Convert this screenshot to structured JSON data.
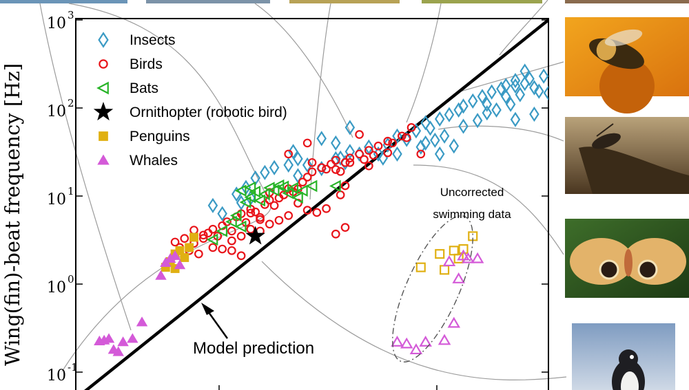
{
  "chart_data": {
    "type": "scatter",
    "xscale": "log",
    "yscale": "log",
    "ylabel": "Wing(fin)-beat frequency [Hz]",
    "ylim": [
      0.05,
      1000
    ],
    "y_ticks": [
      {
        "mant": "10",
        "exp": "-1",
        "value": 0.1
      },
      {
        "mant": "10",
        "exp": "0",
        "value": 1
      },
      {
        "mant": "10",
        "exp": "1",
        "value": 10
      },
      {
        "mant": "10",
        "exp": "2",
        "value": 100
      },
      {
        "mant": "10",
        "exp": "3",
        "value": 1000
      }
    ],
    "legend_position": "top-left",
    "model_line": {
      "label": "Model prediction",
      "y_at_left": 0.05,
      "y_at_right": 1000
    },
    "annotation": {
      "line1": "Uncorrected",
      "line2": "swimming data"
    },
    "series": [
      {
        "name": "Insects",
        "marker": "diamond-open",
        "color": "#3a9ac4",
        "points": [
          [
            0.29,
            7.8
          ],
          [
            0.31,
            6.3
          ],
          [
            0.34,
            10.5
          ],
          [
            0.35,
            8.4
          ],
          [
            0.37,
            9.5
          ],
          [
            0.36,
            12.5
          ],
          [
            0.38,
            16
          ],
          [
            0.4,
            18.5
          ],
          [
            0.42,
            21
          ],
          [
            0.45,
            22.5
          ],
          [
            0.47,
            26.5
          ],
          [
            0.49,
            22.5
          ],
          [
            0.52,
            20.5
          ],
          [
            0.55,
            26.5
          ],
          [
            0.58,
            32
          ],
          [
            0.52,
            45
          ],
          [
            0.47,
            17
          ],
          [
            0.46,
            32
          ],
          [
            0.55,
            40
          ],
          [
            0.56,
            27
          ],
          [
            0.57,
            24
          ],
          [
            0.6,
            30
          ],
          [
            0.62,
            36
          ],
          [
            0.64,
            30
          ],
          [
            0.65,
            27
          ],
          [
            0.66,
            38
          ],
          [
            0.68,
            48
          ],
          [
            0.7,
            44
          ],
          [
            0.72,
            55
          ],
          [
            0.74,
            68
          ],
          [
            0.75,
            59
          ],
          [
            0.77,
            75
          ],
          [
            0.79,
            84
          ],
          [
            0.81,
            95
          ],
          [
            0.82,
            105
          ],
          [
            0.84,
            120
          ],
          [
            0.86,
            135
          ],
          [
            0.87,
            110
          ],
          [
            0.88,
            152
          ],
          [
            0.9,
            165
          ],
          [
            0.91,
            135
          ],
          [
            0.93,
            178
          ],
          [
            0.95,
            190
          ],
          [
            0.96,
            215
          ],
          [
            0.97,
            170
          ],
          [
            0.99,
            230
          ],
          [
            1.01,
            195
          ],
          [
            1.02,
            240
          ],
          [
            1.04,
            214
          ],
          [
            0.95,
            262
          ],
          [
            0.93,
            205
          ],
          [
            0.89,
            95
          ],
          [
            0.85,
            72
          ],
          [
            0.82,
            62
          ],
          [
            0.78,
            48
          ],
          [
            0.76,
            43
          ],
          [
            0.73,
            36
          ],
          [
            0.87,
            88
          ],
          [
            0.92,
            110
          ],
          [
            0.94,
            142
          ],
          [
            0.98,
            155
          ],
          [
            1.0,
            148
          ],
          [
            1.05,
            195
          ],
          [
            0.91,
            180
          ],
          [
            0.97,
            85
          ],
          [
            0.93,
            74
          ],
          [
            0.8,
            37
          ],
          [
            0.77,
            30
          ],
          [
            0.74,
            40
          ],
          [
            0.68,
            30
          ],
          [
            0.58,
            60
          ],
          [
            1.16,
            243
          ],
          [
            1.19,
            460
          ]
        ]
      },
      {
        "name": "Birds",
        "marker": "circle-open",
        "color": "#e8141a",
        "points": [
          [
            0.21,
            3.0
          ],
          [
            0.22,
            2.6
          ],
          [
            0.24,
            2.4
          ],
          [
            0.23,
            3.3
          ],
          [
            0.25,
            2.9
          ],
          [
            0.26,
            2.2
          ],
          [
            0.27,
            3.6
          ],
          [
            0.28,
            3.8
          ],
          [
            0.29,
            4.2
          ],
          [
            0.3,
            3.5
          ],
          [
            0.31,
            4.6
          ],
          [
            0.32,
            5.1
          ],
          [
            0.33,
            4.0
          ],
          [
            0.34,
            5.8
          ],
          [
            0.35,
            6.3
          ],
          [
            0.36,
            5.0
          ],
          [
            0.37,
            7.1
          ],
          [
            0.38,
            6.6
          ],
          [
            0.39,
            5.4
          ],
          [
            0.4,
            8.0
          ],
          [
            0.41,
            9.0
          ],
          [
            0.42,
            7.8
          ],
          [
            0.44,
            10.3
          ],
          [
            0.45,
            12.1
          ],
          [
            0.46,
            11.2
          ],
          [
            0.48,
            14.4
          ],
          [
            0.49,
            16.4
          ],
          [
            0.5,
            18.8
          ],
          [
            0.52,
            21
          ],
          [
            0.53,
            20.2
          ],
          [
            0.54,
            23
          ],
          [
            0.55,
            25.5
          ],
          [
            0.56,
            19
          ],
          [
            0.57,
            24
          ],
          [
            0.58,
            27
          ],
          [
            0.6,
            30
          ],
          [
            0.61,
            26
          ],
          [
            0.62,
            33
          ],
          [
            0.63,
            29
          ],
          [
            0.64,
            37
          ],
          [
            0.66,
            42
          ],
          [
            0.67,
            40
          ],
          [
            0.69,
            48
          ],
          [
            0.7,
            46
          ],
          [
            0.71,
            60
          ],
          [
            0.73,
            30
          ],
          [
            0.25,
            4.1
          ],
          [
            0.27,
            3.3
          ],
          [
            0.29,
            2.6
          ],
          [
            0.31,
            2.5
          ],
          [
            0.33,
            3.1
          ],
          [
            0.35,
            3.5
          ],
          [
            0.37,
            4.2
          ],
          [
            0.39,
            4.0
          ],
          [
            0.41,
            4.8
          ],
          [
            0.43,
            5.3
          ],
          [
            0.45,
            6.0
          ],
          [
            0.47,
            8.3
          ],
          [
            0.49,
            6.9
          ],
          [
            0.51,
            6.5
          ],
          [
            0.53,
            7.2
          ],
          [
            0.33,
            2.4
          ],
          [
            0.35,
            2.1
          ],
          [
            0.39,
            5.7
          ],
          [
            0.43,
            9.5
          ],
          [
            0.47,
            12.0
          ],
          [
            0.5,
            24
          ],
          [
            0.55,
            20
          ],
          [
            0.58,
            24
          ],
          [
            0.62,
            22
          ],
          [
            0.66,
            31
          ],
          [
            0.45,
            30
          ],
          [
            0.41,
            11
          ],
          [
            0.37,
            6.4
          ],
          [
            0.56,
            10.3
          ],
          [
            0.57,
            13.1
          ],
          [
            0.55,
            3.7
          ],
          [
            0.57,
            4.4
          ],
          [
            0.49,
            40
          ],
          [
            0.6,
            50
          ]
        ]
      },
      {
        "name": "Bats",
        "marker": "triangle-left-open",
        "color": "#28b428",
        "points": [
          [
            0.29,
            3.2
          ],
          [
            0.31,
            4.0
          ],
          [
            0.33,
            5.1
          ],
          [
            0.34,
            6.0
          ],
          [
            0.36,
            8.5
          ],
          [
            0.37,
            9.7
          ],
          [
            0.38,
            11.2
          ],
          [
            0.4,
            10.5
          ],
          [
            0.41,
            12.4
          ],
          [
            0.42,
            11.6
          ],
          [
            0.43,
            13.2
          ],
          [
            0.44,
            12.8
          ],
          [
            0.45,
            10.8
          ],
          [
            0.46,
            12.3
          ],
          [
            0.47,
            9.6
          ],
          [
            0.48,
            11.5
          ],
          [
            0.35,
            11.5
          ],
          [
            0.37,
            12.5
          ],
          [
            0.39,
            8.9
          ],
          [
            0.5,
            13.0
          ],
          [
            0.55,
            13.0
          ],
          [
            0.35,
            4.5
          ]
        ]
      },
      {
        "name": "Ornithopter (robotic bird)",
        "marker": "star-filled",
        "color": "#000000",
        "points": [
          [
            0.38,
            3.5
          ]
        ]
      },
      {
        "name": "Penguins",
        "marker": "square-filled",
        "color": "#e0b012",
        "points": [
          [
            0.19,
            1.55
          ],
          [
            0.2,
            1.8
          ],
          [
            0.21,
            2.2
          ],
          [
            0.22,
            2.4
          ],
          [
            0.23,
            2.0
          ],
          [
            0.24,
            2.6
          ],
          [
            0.25,
            3.4
          ],
          [
            0.21,
            1.5
          ]
        ]
      },
      {
        "name": "Whales",
        "marker": "triangle-up-filled",
        "color": "#d45ad8",
        "points": [
          [
            0.05,
            0.225
          ],
          [
            0.06,
            0.23
          ],
          [
            0.07,
            0.24
          ],
          [
            0.08,
            0.18
          ],
          [
            0.09,
            0.17
          ],
          [
            0.1,
            0.22
          ],
          [
            0.12,
            0.24
          ],
          [
            0.14,
            0.37
          ],
          [
            0.18,
            1.25
          ],
          [
            0.19,
            1.75
          ],
          [
            0.2,
            1.95
          ],
          [
            0.21,
            2.1
          ],
          [
            0.22,
            1.65
          ]
        ]
      }
    ],
    "uncorrected_swimming": [
      {
        "name": "Penguins",
        "marker": "square-open",
        "color": "#e0b012",
        "points": [
          [
            0.73,
            1.55
          ],
          [
            0.77,
            2.2
          ],
          [
            0.78,
            1.45
          ],
          [
            0.8,
            2.4
          ],
          [
            0.81,
            1.95
          ],
          [
            0.82,
            2.5
          ],
          [
            0.84,
            3.5
          ]
        ]
      },
      {
        "name": "Whales",
        "marker": "triangle-up-open",
        "color": "#d45ad8",
        "points": [
          [
            0.68,
            0.22
          ],
          [
            0.7,
            0.21
          ],
          [
            0.72,
            0.18
          ],
          [
            0.74,
            0.22
          ],
          [
            0.78,
            0.23
          ],
          [
            0.8,
            0.36
          ],
          [
            0.79,
            1.8
          ],
          [
            0.81,
            1.15
          ],
          [
            0.83,
            1.95
          ],
          [
            0.85,
            1.95
          ],
          [
            0.82,
            2.1
          ]
        ]
      }
    ]
  },
  "photos": [
    {
      "name": "honeybee-photo",
      "color": "#e58e18"
    },
    {
      "name": "beetle-photo",
      "color": "#6b4f2b"
    },
    {
      "name": "moth-photo",
      "color": "#2f5a1e"
    },
    {
      "name": "penguin-photo",
      "color": "#5c7ea8"
    }
  ]
}
